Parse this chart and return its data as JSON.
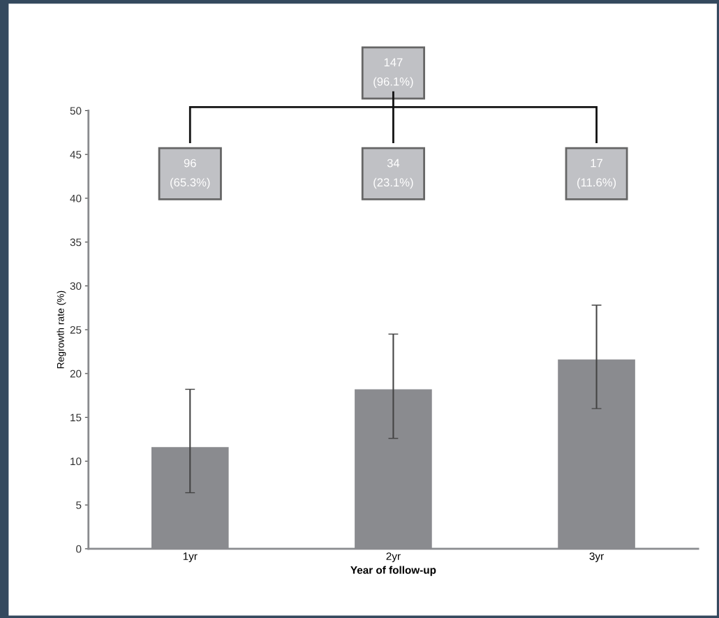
{
  "chart_data": {
    "type": "bar",
    "xlabel": "Year of follow-up",
    "ylabel": "Regrowth rate (%)",
    "categories": [
      "1yr",
      "2yr",
      "3yr"
    ],
    "values": [
      11.6,
      18.2,
      21.6
    ],
    "errors": [
      [
        6.4,
        18.2
      ],
      [
        12.6,
        24.5
      ],
      [
        16.0,
        27.8
      ]
    ],
    "color": "#8a8b8f",
    "ylim": [
      0,
      50
    ],
    "yticks": [
      0,
      5,
      10,
      15,
      20,
      25,
      30,
      35,
      40,
      45,
      50
    ],
    "annotations": [
      "147\n(96.1%)",
      "96\n(65.3%)",
      "34\n(23.1%)",
      "17\n(11.6%)"
    ],
    "grid": false
  }
}
